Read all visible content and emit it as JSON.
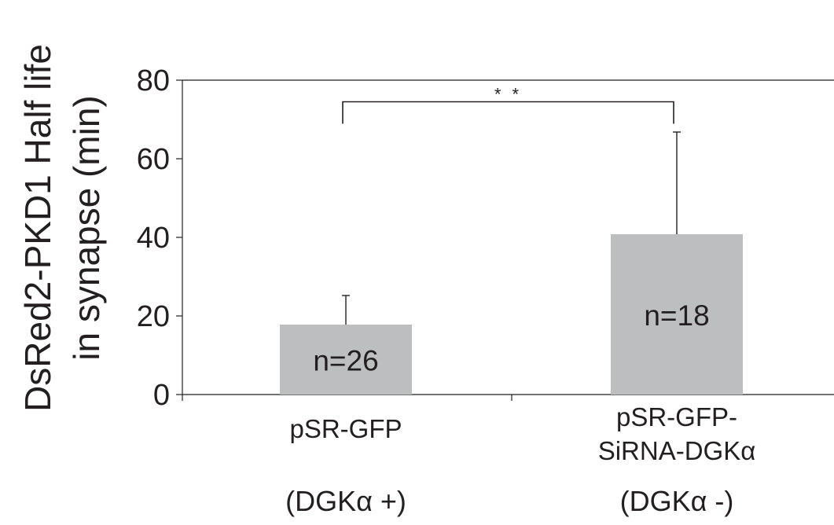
{
  "chart_data": {
    "type": "bar",
    "ylabel_lines": [
      "DsRed2-PKD1 Half life",
      "in synapse (min)"
    ],
    "xlabel": "",
    "ylim": [
      0,
      80
    ],
    "yticks": [
      0,
      20,
      40,
      60,
      80
    ],
    "categories": [
      "pSR-GFP",
      "pSR-GFP-SiRNA-DGKα"
    ],
    "category_lines": [
      [
        "pSR-GFP"
      ],
      [
        "pSR-GFP-",
        "SiRNA-DGKα"
      ]
    ],
    "sublabels": [
      "(DGKα +)",
      "(DGKα -)"
    ],
    "values": [
      17.8,
      40.8
    ],
    "error_upper": [
      25.2,
      66.8
    ],
    "bar_labels": [
      "n=26",
      "n=18"
    ],
    "significance": {
      "label": "* *",
      "between": [
        0,
        1
      ],
      "y": 74.5
    },
    "colors": {
      "bar": "#bcbec0",
      "axis": "#231f20",
      "text": "#231f20"
    },
    "grid": false,
    "legend": "none"
  }
}
